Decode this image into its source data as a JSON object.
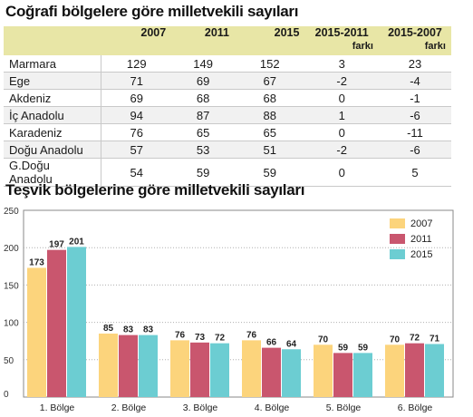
{
  "table": {
    "title": "Coğrafi bölgelere göre milletvekili sayıları",
    "columns": [
      "2007",
      "2011",
      "2015",
      "2015-2011",
      "2015-2007"
    ],
    "column_sub": [
      "",
      "",
      "",
      "farkı",
      "farkı"
    ],
    "rows": [
      {
        "name": "Marmara",
        "values": [
          "129",
          "149",
          "152",
          "3",
          "23"
        ]
      },
      {
        "name": "Ege",
        "values": [
          "71",
          "69",
          "67",
          "-2",
          "-4"
        ]
      },
      {
        "name": "Akdeniz",
        "values": [
          "69",
          "68",
          "68",
          "0",
          "-1"
        ]
      },
      {
        "name": "İç Anadolu",
        "values": [
          "94",
          "87",
          "88",
          "1",
          "-6"
        ]
      },
      {
        "name": "Karadeniz",
        "values": [
          "76",
          "65",
          "65",
          "0",
          "-11"
        ]
      },
      {
        "name": "Doğu Anadolu",
        "values": [
          "57",
          "53",
          "51",
          "-2",
          "-6"
        ]
      },
      {
        "name": "G.Doğu Anadolu",
        "values": [
          "54",
          "59",
          "59",
          "0",
          "5"
        ]
      }
    ]
  },
  "chart_data": {
    "type": "bar",
    "title": "Teşvik bölgelerine göre milletvekili sayıları",
    "categories": [
      "1. Bölge",
      "2. Bölge",
      "3. Bölge",
      "4. Bölge",
      "5. Bölge",
      "6. Bölge"
    ],
    "series": [
      {
        "name": "2007",
        "color": "#fcd47c",
        "values": [
          173,
          85,
          76,
          76,
          70,
          70
        ]
      },
      {
        "name": "2011",
        "color": "#c9566e",
        "values": [
          197,
          83,
          73,
          66,
          59,
          72
        ]
      },
      {
        "name": "2015",
        "color": "#6ccdd2",
        "values": [
          201,
          83,
          72,
          64,
          59,
          71
        ]
      }
    ],
    "yticks": [
      0,
      50,
      100,
      150,
      200,
      250
    ],
    "ylim": [
      0,
      250
    ],
    "grid": true,
    "legend": "top-right"
  }
}
